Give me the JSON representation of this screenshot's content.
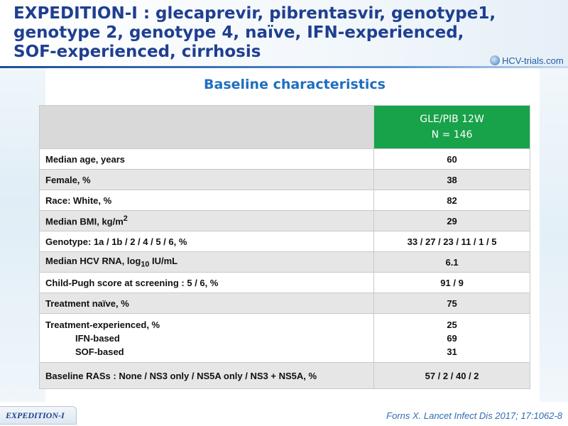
{
  "title_lines": [
    "EXPEDITION-I : glecaprevir, pibrentasvir, genotype1,",
    "genotype 2, genotype 4,  naïve, IFN-experienced,",
    "SOF-experienced, cirrhosis"
  ],
  "logo_text": "HCV-trials.com",
  "subtitle": "Baseline characteristics",
  "table": {
    "header": {
      "line1": "GLE/PIB 12W",
      "line2": "N = 146"
    },
    "rows": [
      {
        "label": "Median age, years",
        "value": "60"
      },
      {
        "label": "Female, %",
        "value": "38"
      },
      {
        "label": "Race: White, %",
        "value": "82"
      },
      {
        "label_pre": "Median BMI, kg/m",
        "label_sup": "2",
        "value": "29"
      },
      {
        "label": "Genotype: 1a / 1b / 2 / 4 / 5 / 6, %",
        "value": "33 / 27 / 23 / 11 / 1 / 5"
      },
      {
        "label_pre": "Median HCV RNA,  log",
        "label_sub": "10",
        "label_post": " IU/mL",
        "value": "6.1"
      },
      {
        "label": "Child-Pugh score at screening : 5 / 6, %",
        "value": "91 / 9"
      },
      {
        "label": "Treatment naïve, %",
        "value": "75"
      },
      {
        "label": "Treatment-experienced, %",
        "sub1": "IFN-based",
        "sub2": "SOF-based",
        "value": "25",
        "value1": "69",
        "value2": "31"
      },
      {
        "label": "Baseline RASs : None / NS3 only / NS5A only / NS3 + NS5A, %",
        "value": "57 / 2 / 40 / 2"
      }
    ]
  },
  "footer": {
    "tab": "EXPEDITION-I",
    "citation": "Forns X. Lancet Infect Dis 2017; 17:1062-8"
  }
}
